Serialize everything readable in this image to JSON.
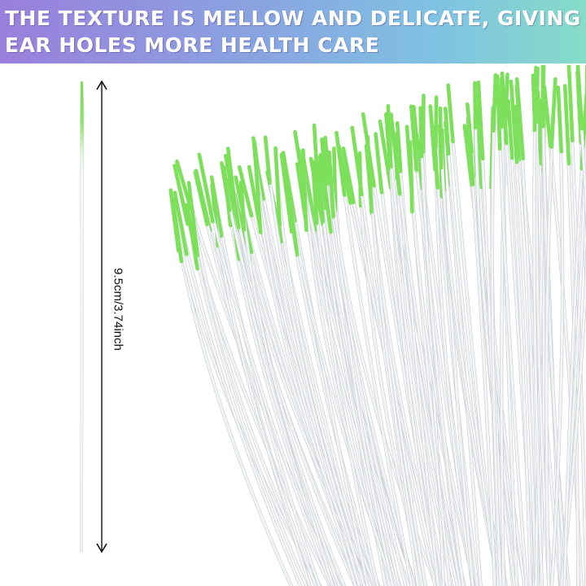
{
  "banner": {
    "headline": "THE TEXTURE IS MELLOW AND DELICATE, GIVING EAR HOLES MORE HEALTH CARE",
    "gradient_colors": [
      "#9a7fdc",
      "#86dcc8"
    ]
  },
  "product": {
    "length_label": "9.5cm/3.74inch",
    "tip_color": "#7de05a",
    "body_color": "#f2f4f5"
  }
}
